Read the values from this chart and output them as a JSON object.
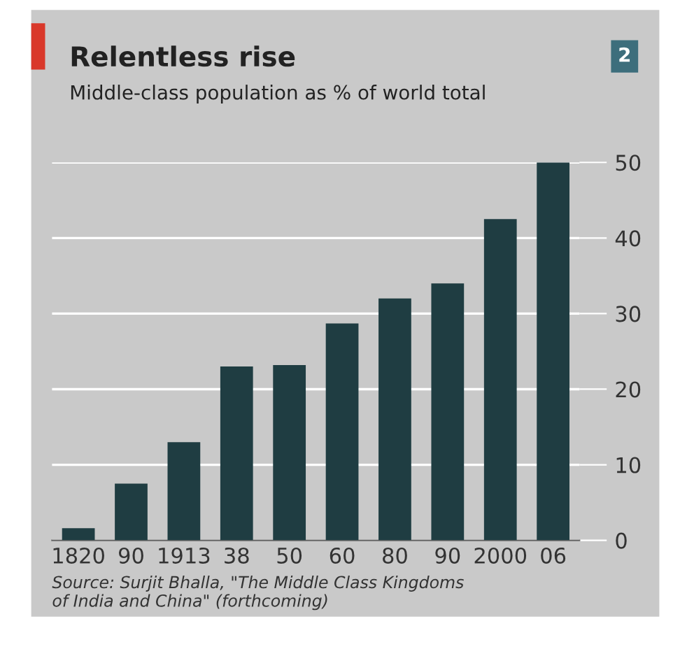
{
  "chart_data": {
    "type": "bar",
    "title": "Relentless rise",
    "subtitle": "Middle-class population as % of world total",
    "categories": [
      "1820",
      "90",
      "1913",
      "38",
      "50",
      "60",
      "80",
      "90",
      "2000",
      "06"
    ],
    "values": [
      1.6,
      7.5,
      13,
      23,
      23.2,
      28.7,
      32,
      34,
      42.5,
      50
    ],
    "color": "#1f3d42",
    "ylim": [
      0,
      50
    ],
    "yticks": [
      0,
      10,
      20,
      30,
      40,
      50
    ],
    "grid": "y",
    "annotations": [
      "2",
      "Source: Surjit Bhalla, \"The Middle Class Kingdoms\nof India and China\" (forthcoming)"
    ]
  }
}
